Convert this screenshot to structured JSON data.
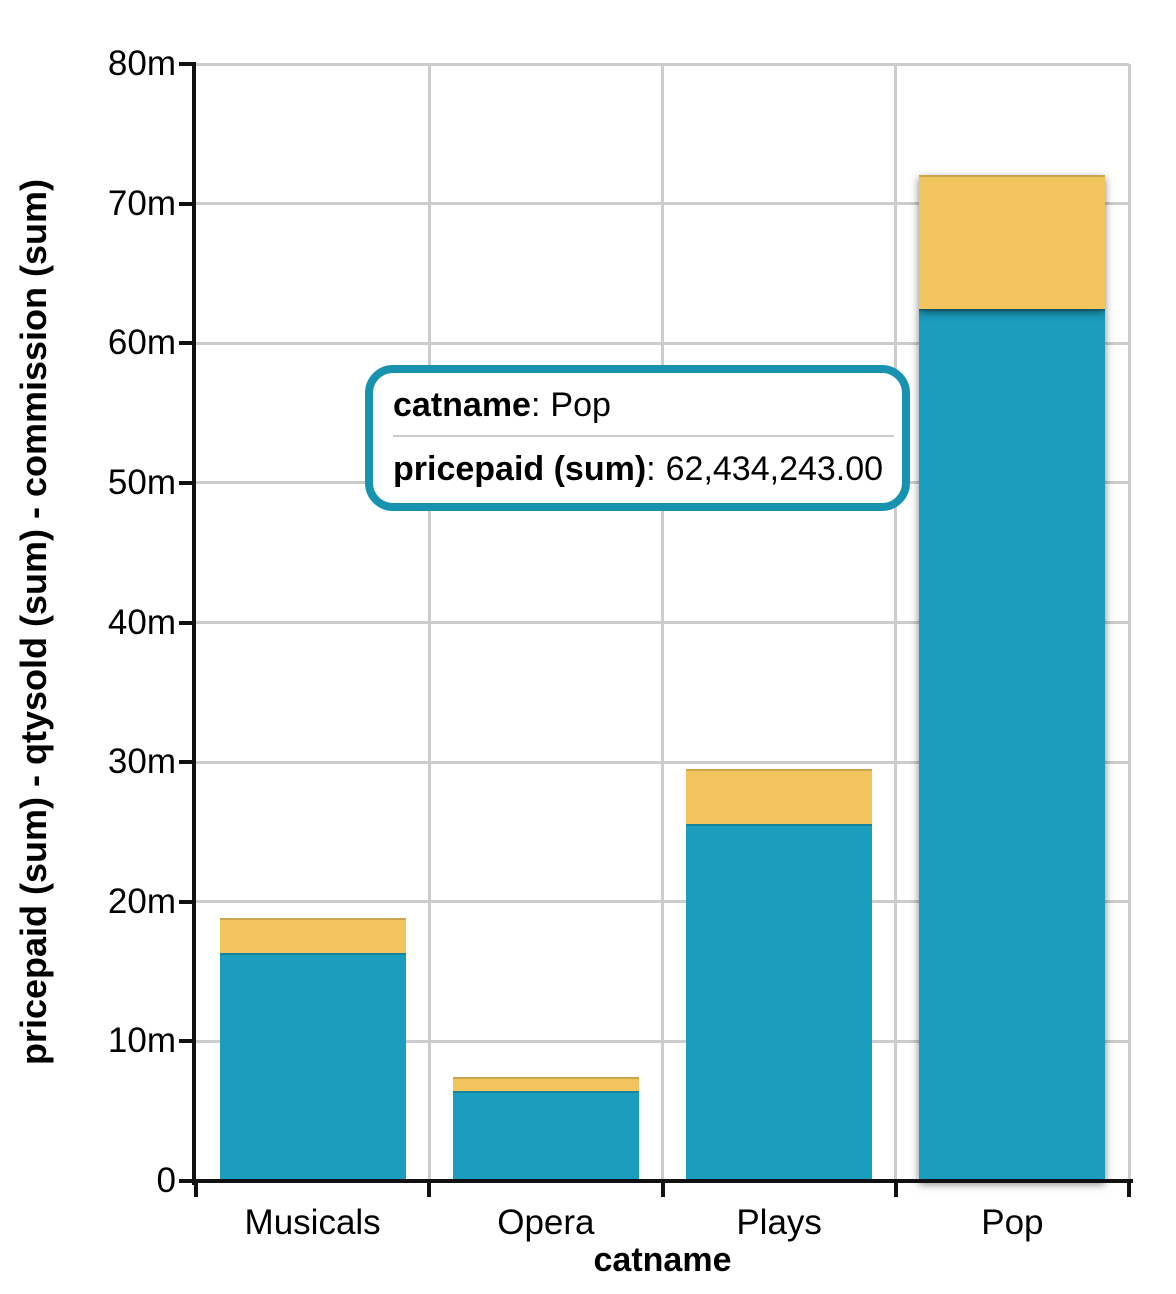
{
  "chart_data": {
    "type": "bar",
    "stacked": true,
    "x_axis_title": "catname",
    "y_axis_title": "pricepaid (sum) - qtysold (sum) - commission (sum)",
    "categories": [
      "Musicals",
      "Opera",
      "Plays",
      "Pop"
    ],
    "series": [
      {
        "name": "pricepaid (sum)",
        "color": "#1B9DBE",
        "values_millions": [
          16.35,
          6.45,
          25.6,
          62.434243
        ]
      },
      {
        "name": "qtysold (sum) - commission (sum)",
        "color": "#F2C45E",
        "values_millions": [
          2.5,
          1.0,
          3.9,
          9.6
        ]
      }
    ],
    "y_ticks": [
      {
        "value": 0,
        "label": "0"
      },
      {
        "value": 10,
        "label": "10m"
      },
      {
        "value": 20,
        "label": "20m"
      },
      {
        "value": 30,
        "label": "30m"
      },
      {
        "value": 40,
        "label": "40m"
      },
      {
        "value": 50,
        "label": "50m"
      },
      {
        "value": 60,
        "label": "60m"
      },
      {
        "value": 70,
        "label": "70m"
      },
      {
        "value": 80,
        "label": "80m"
      }
    ],
    "ylim_millions": [
      0,
      80
    ],
    "grid": true,
    "legend_position": "none",
    "highlighted_category": "Pop"
  },
  "tooltip": {
    "sep": ":",
    "border_color": "#1793B0",
    "rows": [
      {
        "label": "catname",
        "value": "Pop"
      },
      {
        "label": "pricepaid (sum)",
        "value": "62,434,243.00"
      }
    ]
  },
  "colors": {
    "gridline": "#CCCCCC",
    "axis": "#111111",
    "text": "#000000",
    "background": "#FFFFFF"
  }
}
